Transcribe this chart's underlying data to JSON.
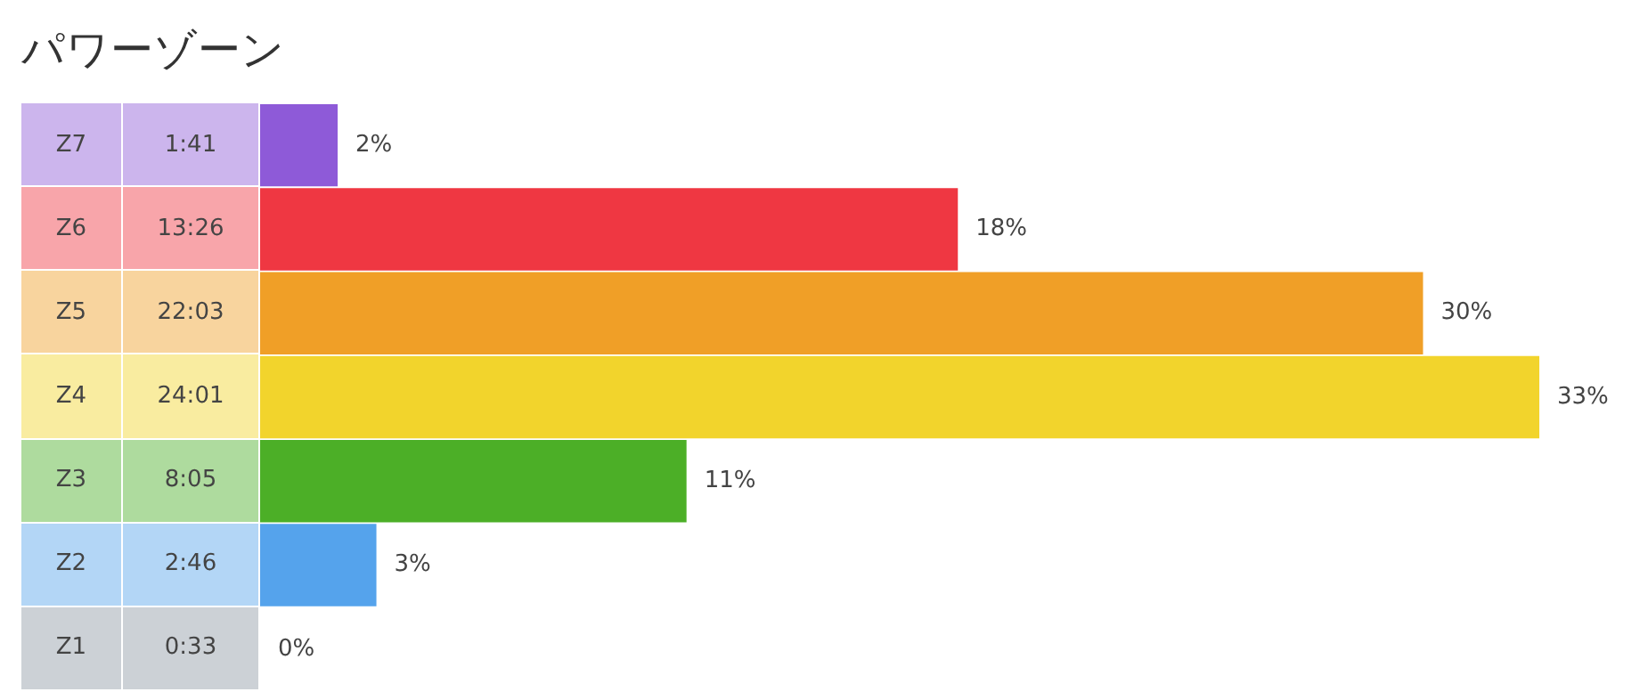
{
  "chart_data": {
    "type": "bar",
    "orientation": "horizontal",
    "title": "パワーゾーン",
    "categories": [
      "Z7",
      "Z6",
      "Z5",
      "Z4",
      "Z3",
      "Z2",
      "Z1"
    ],
    "values": [
      2,
      18,
      30,
      33,
      11,
      3,
      0
    ],
    "value_labels": [
      "2%",
      "18%",
      "30%",
      "33%",
      "11%",
      "3%",
      "0%"
    ],
    "colors": [
      "#8e5ad8",
      "#ef3742",
      "#f09f27",
      "#f2d42c",
      "#4caf27",
      "#55a3ec",
      "#8d98a3"
    ],
    "annotations": [
      "1:41",
      "13:26",
      "22:03",
      "24:01",
      "8:05",
      "2:46",
      "0:33"
    ]
  }
}
